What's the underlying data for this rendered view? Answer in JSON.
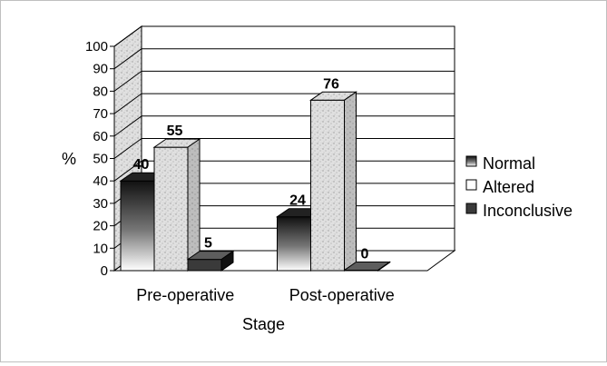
{
  "chart_data": {
    "type": "bar",
    "subtype": "3d-clustered-column",
    "categories": [
      "Pre-operative",
      "Post-operative"
    ],
    "series": [
      {
        "name": "Normal",
        "values": [
          40,
          24
        ],
        "color": "#1a1a1a"
      },
      {
        "name": "Altered",
        "values": [
          55,
          76
        ],
        "color": "#d8d8d8"
      },
      {
        "name": "Inconclusive",
        "values": [
          5,
          0
        ],
        "color": "#3a3a3a"
      }
    ],
    "ylabel": "%",
    "xlabel": "Stage",
    "ylim": [
      0,
      100
    ],
    "yticks": [
      "0",
      "10",
      "20",
      "30",
      "40",
      "50",
      "60",
      "70",
      "80",
      "90",
      "100"
    ],
    "grid": true,
    "legend_position": "right"
  }
}
